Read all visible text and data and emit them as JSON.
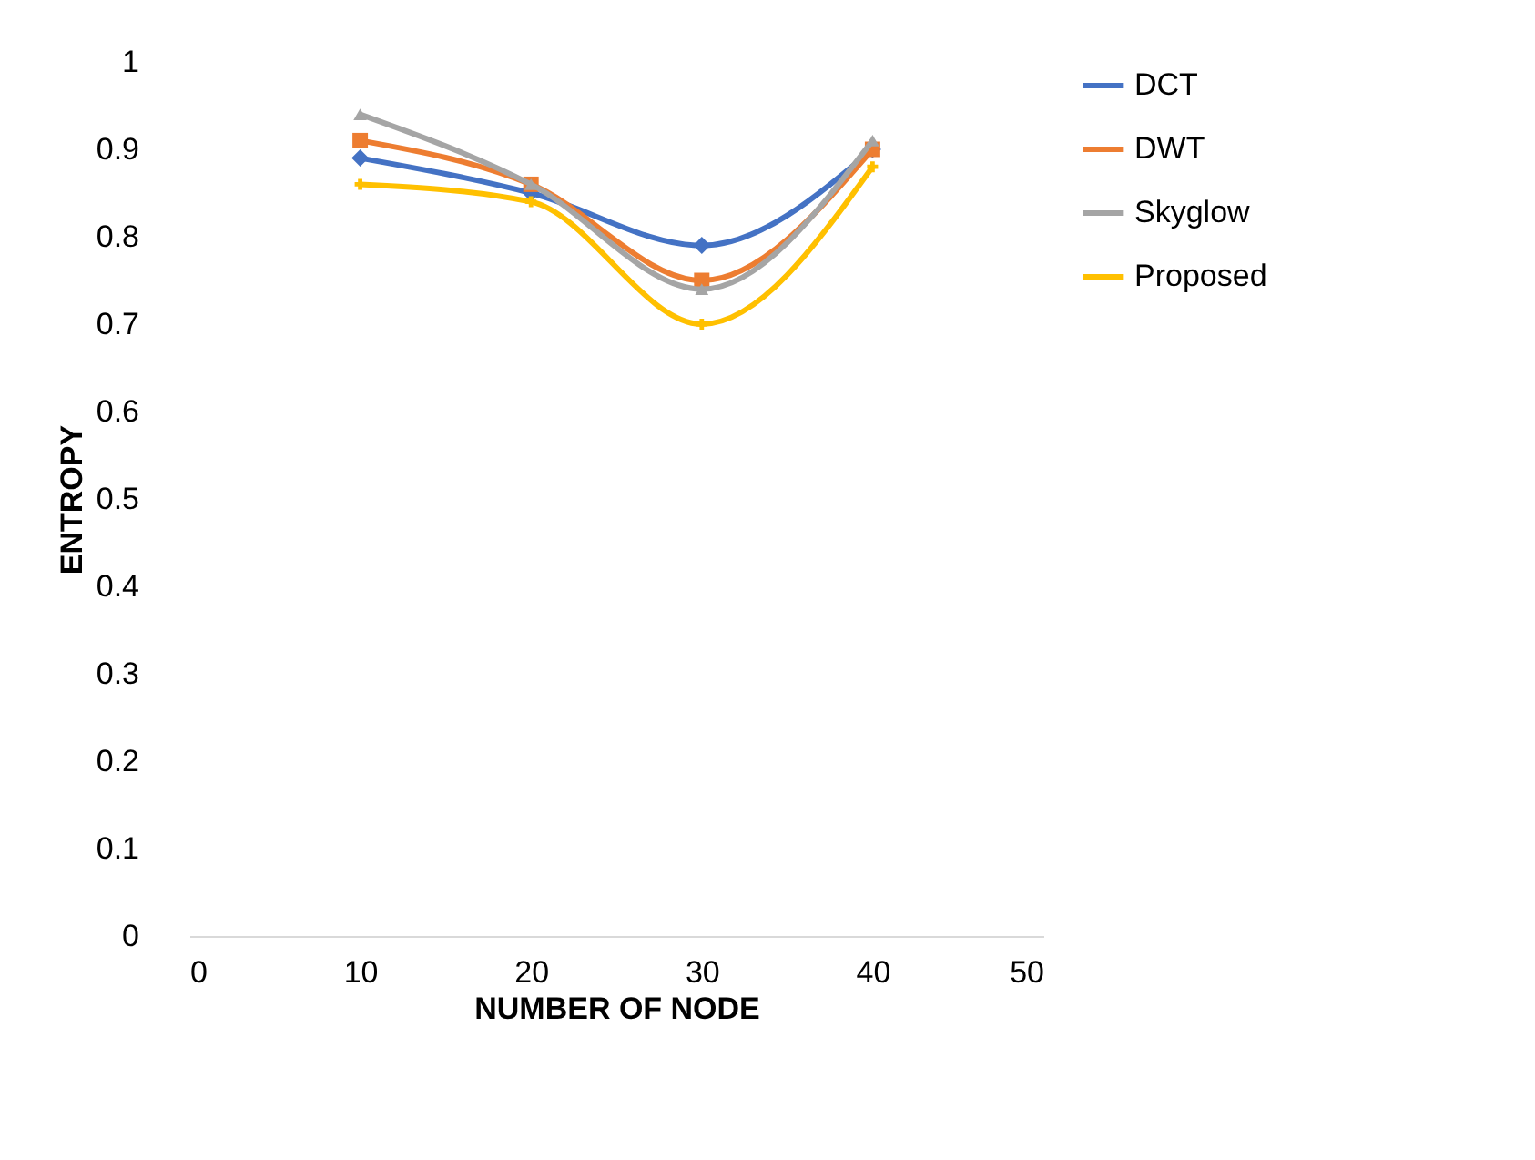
{
  "chart_data": {
    "type": "line",
    "xlabel": "NUMBER OF NODE",
    "ylabel": "ENTROPY",
    "x": [
      10,
      20,
      30,
      40
    ],
    "series": [
      {
        "name": "DCT",
        "color": "#4472c4",
        "marker": "diamond",
        "values": [
          0.89,
          0.85,
          0.79,
          0.9
        ]
      },
      {
        "name": "DWT",
        "color": "#ed7d31",
        "marker": "square",
        "values": [
          0.91,
          0.86,
          0.75,
          0.9
        ]
      },
      {
        "name": "Skyglow",
        "color": "#a5a5a5",
        "marker": "triangle",
        "values": [
          0.94,
          0.86,
          0.74,
          0.91
        ]
      },
      {
        "name": "Proposed",
        "color": "#ffc000",
        "marker": "cross",
        "values": [
          0.86,
          0.84,
          0.7,
          0.88
        ]
      }
    ],
    "xlim": [
      0,
      50
    ],
    "xticks": [
      0,
      10,
      20,
      30,
      40,
      50
    ],
    "ylim": [
      0,
      1
    ],
    "yticks": [
      0,
      0.1,
      0.2,
      0.3,
      0.4,
      0.5,
      0.6,
      0.7,
      0.8,
      0.9,
      1
    ],
    "grid": false,
    "legend": "right",
    "line_style": "solid"
  }
}
